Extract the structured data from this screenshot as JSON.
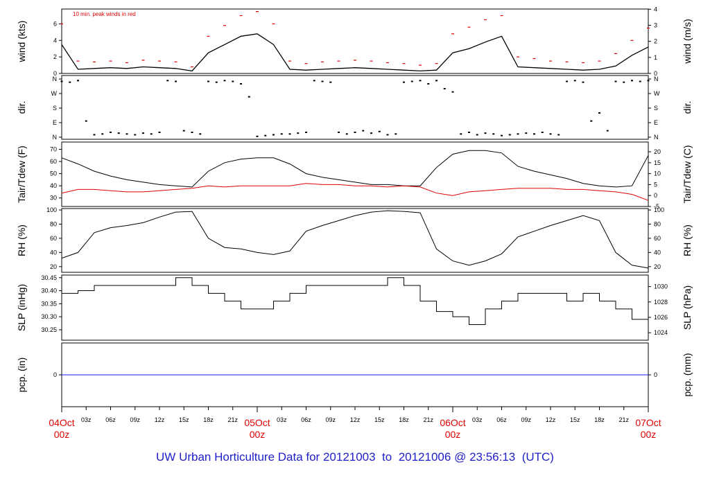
{
  "footer": {
    "prefix": "UW Urban Horticulture Data for",
    "start": "20121003",
    "to": "to",
    "end": "20121006",
    "at": "@",
    "time": "23:56:13",
    "zone": "(UTC)"
  },
  "colors": {
    "series_main": "#000000",
    "peak_wind": "#e00000",
    "dewpoint": "#e00000",
    "precip": "#1a1aff",
    "date_labels": "#e00000"
  },
  "chart_data": [
    {
      "type": "line",
      "panel": "wind",
      "ylabel": "wind (kts)",
      "ylabel_right": "wind (m/s)",
      "annotation": "10 min. peak winds in red",
      "ylim": [
        0,
        7.8
      ],
      "yticks": [
        0,
        2,
        4,
        6
      ],
      "yticks_right": [
        0,
        1,
        2,
        3,
        4
      ],
      "x_hours": [
        0,
        2,
        4,
        6,
        8,
        10,
        12,
        14,
        16,
        18,
        20,
        22,
        24,
        26,
        28,
        30,
        32,
        34,
        36,
        38,
        40,
        42,
        44,
        46,
        48,
        50,
        52,
        54,
        56,
        58,
        60,
        62,
        64,
        66,
        68,
        70,
        72
      ],
      "series": [
        {
          "values": [
            3.5,
            0.5,
            0.6,
            0.7,
            0.6,
            0.8,
            0.7,
            0.6,
            0.3,
            2.5,
            3.5,
            4.5,
            4.8,
            3.5,
            0.5,
            0.4,
            0.5,
            0.6,
            0.7,
            0.6,
            0.5,
            0.4,
            0.3,
            0.4,
            2.5,
            3.0,
            3.8,
            4.5,
            0.8,
            0.7,
            0.6,
            0.5,
            0.4,
            0.5,
            0.9,
            2.2,
            3.2
          ]
        },
        {
          "values": [
            6.0,
            1.5,
            1.4,
            1.5,
            1.3,
            1.6,
            1.5,
            1.4,
            0.8,
            4.5,
            5.8,
            7.0,
            7.5,
            6.0,
            1.5,
            1.2,
            1.4,
            1.5,
            1.6,
            1.5,
            1.3,
            1.2,
            1.0,
            1.2,
            4.8,
            5.6,
            6.5,
            7.0,
            2.0,
            1.8,
            1.5,
            1.4,
            1.3,
            1.5,
            2.4,
            4.0,
            5.5
          ]
        }
      ]
    },
    {
      "type": "scatter",
      "panel": "dir",
      "ylabel": "dir.",
      "ylabel_right": "dir.",
      "yticks": [
        "N",
        "E",
        "S",
        "W",
        "N"
      ],
      "ylim": [
        0,
        360
      ],
      "x_hours": [
        0,
        1,
        2,
        3,
        4,
        5,
        6,
        7,
        8,
        9,
        10,
        11,
        12,
        13,
        14,
        15,
        16,
        17,
        18,
        19,
        20,
        21,
        22,
        23,
        24,
        25,
        26,
        27,
        28,
        29,
        30,
        31,
        32,
        33,
        34,
        35,
        36,
        37,
        38,
        39,
        40,
        41,
        42,
        43,
        44,
        45,
        46,
        47,
        48,
        49,
        50,
        51,
        52,
        53,
        54,
        55,
        56,
        57,
        58,
        59,
        60,
        61,
        62,
        63,
        64,
        65,
        66,
        67,
        68,
        69,
        70,
        71,
        72
      ],
      "values": [
        345,
        340,
        350,
        100,
        15,
        20,
        30,
        25,
        20,
        15,
        25,
        20,
        30,
        350,
        345,
        40,
        30,
        20,
        345,
        340,
        350,
        345,
        330,
        250,
        5,
        10,
        15,
        20,
        20,
        25,
        30,
        350,
        345,
        340,
        30,
        20,
        30,
        40,
        25,
        35,
        15,
        20,
        340,
        345,
        350,
        330,
        350,
        300,
        280,
        20,
        30,
        15,
        25,
        20,
        10,
        15,
        20,
        25,
        20,
        30,
        20,
        15,
        345,
        350,
        340,
        100,
        150,
        40,
        345,
        340,
        350,
        345,
        350
      ]
    },
    {
      "type": "line",
      "panel": "temperature",
      "ylabel": "Tair/Tdew (F)",
      "ylabel_right": "Tair/Tdew (C)",
      "ylim": [
        23,
        76
      ],
      "yticks": [
        30,
        40,
        50,
        60,
        70
      ],
      "yticks_right": [
        -5,
        0,
        5,
        10,
        15,
        20
      ],
      "x_hours": [
        0,
        2,
        4,
        6,
        8,
        10,
        12,
        14,
        16,
        18,
        20,
        22,
        24,
        26,
        28,
        30,
        32,
        34,
        36,
        38,
        40,
        42,
        44,
        46,
        48,
        50,
        52,
        54,
        56,
        58,
        60,
        62,
        64,
        66,
        68,
        70,
        72
      ],
      "series": [
        {
          "values": [
            63,
            58,
            52,
            48,
            45,
            43,
            41,
            40,
            39,
            52,
            59,
            62,
            63,
            63,
            58,
            50,
            47,
            45,
            43,
            41,
            41,
            40,
            40,
            55,
            66,
            69,
            69,
            67,
            56,
            52,
            49,
            46,
            42,
            40,
            39,
            40,
            65
          ]
        },
        {
          "values": [
            34,
            37,
            37,
            36,
            35,
            35,
            36,
            37,
            38,
            40,
            39,
            40,
            40,
            40,
            40,
            42,
            41,
            41,
            40,
            40,
            39,
            40,
            39,
            34,
            32,
            35,
            36,
            37,
            38,
            38,
            38,
            37,
            37,
            36,
            35,
            33,
            28
          ]
        }
      ]
    },
    {
      "type": "line",
      "panel": "rh",
      "ylabel": "RH (%)",
      "ylabel_right": "RH (%)",
      "ylim": [
        12,
        102
      ],
      "yticks": [
        20,
        40,
        60,
        80,
        100
      ],
      "yticks_right": [
        20,
        40,
        60,
        80,
        100
      ],
      "x_hours": [
        0,
        2,
        4,
        6,
        8,
        10,
        12,
        14,
        16,
        18,
        20,
        22,
        24,
        26,
        28,
        30,
        32,
        34,
        36,
        38,
        40,
        42,
        44,
        46,
        48,
        50,
        52,
        54,
        56,
        58,
        60,
        62,
        64,
        66,
        68,
        70,
        72
      ],
      "series": [
        {
          "values": [
            32,
            40,
            68,
            75,
            78,
            82,
            90,
            97,
            98,
            60,
            47,
            45,
            40,
            37,
            42,
            70,
            78,
            85,
            92,
            97,
            99,
            98,
            96,
            45,
            28,
            22,
            28,
            38,
            62,
            70,
            78,
            85,
            92,
            85,
            40,
            22,
            18
          ]
        }
      ]
    },
    {
      "type": "line",
      "panel": "slp",
      "ylabel": "SLP (inHg)",
      "ylabel_right": "SLP (hPa)",
      "ylim": [
        30.21,
        30.46
      ],
      "yticks": [
        30.25,
        30.3,
        30.35,
        30.4,
        30.45
      ],
      "yticks_right": [
        1024,
        1026,
        1028,
        1030
      ],
      "x_hours": [
        0,
        2,
        4,
        6,
        8,
        10,
        12,
        14,
        16,
        18,
        20,
        22,
        24,
        26,
        28,
        30,
        32,
        34,
        36,
        38,
        40,
        42,
        44,
        46,
        48,
        50,
        52,
        54,
        56,
        58,
        60,
        62,
        64,
        66,
        68,
        70,
        72
      ],
      "series": [
        {
          "values": [
            30.39,
            30.4,
            30.42,
            30.42,
            30.42,
            30.42,
            30.42,
            30.45,
            30.42,
            30.39,
            30.36,
            30.33,
            30.33,
            30.36,
            30.39,
            30.42,
            30.42,
            30.42,
            30.42,
            30.42,
            30.45,
            30.42,
            30.36,
            30.32,
            30.3,
            30.27,
            30.33,
            30.36,
            30.39,
            30.39,
            30.39,
            30.36,
            30.39,
            30.36,
            30.33,
            30.29,
            30.22
          ]
        }
      ]
    },
    {
      "type": "line",
      "panel": "pcp",
      "ylabel": "pcp. (in)",
      "ylabel_right": "pcp. (mm)",
      "yticks": [
        0
      ],
      "yticks_right": [
        0
      ],
      "ylim": [
        -1,
        1
      ],
      "x_hours": [
        0,
        72
      ],
      "series": [
        {
          "values": [
            0,
            0
          ]
        }
      ]
    }
  ],
  "x_axis": {
    "hour_ticks": [
      "03z",
      "06z",
      "09z",
      "12z",
      "15z",
      "18z",
      "21z",
      "03z",
      "06z",
      "09z",
      "12z",
      "15z",
      "18z",
      "21z",
      "03z",
      "06z",
      "09z",
      "12z",
      "15z",
      "18z",
      "21z"
    ],
    "hour_positions": [
      3,
      6,
      9,
      12,
      15,
      18,
      21,
      27,
      30,
      33,
      36,
      39,
      42,
      45,
      51,
      54,
      57,
      60,
      63,
      66,
      69
    ],
    "dates": [
      {
        "day": "04Oct",
        "hour": "00z"
      },
      {
        "day": "05Oct",
        "hour": "00z"
      },
      {
        "day": "06Oct",
        "hour": "00z"
      },
      {
        "day": "07Oct",
        "hour": "00z"
      }
    ],
    "date_positions": [
      0,
      24,
      48,
      72
    ],
    "range_hours": [
      0,
      72
    ]
  }
}
